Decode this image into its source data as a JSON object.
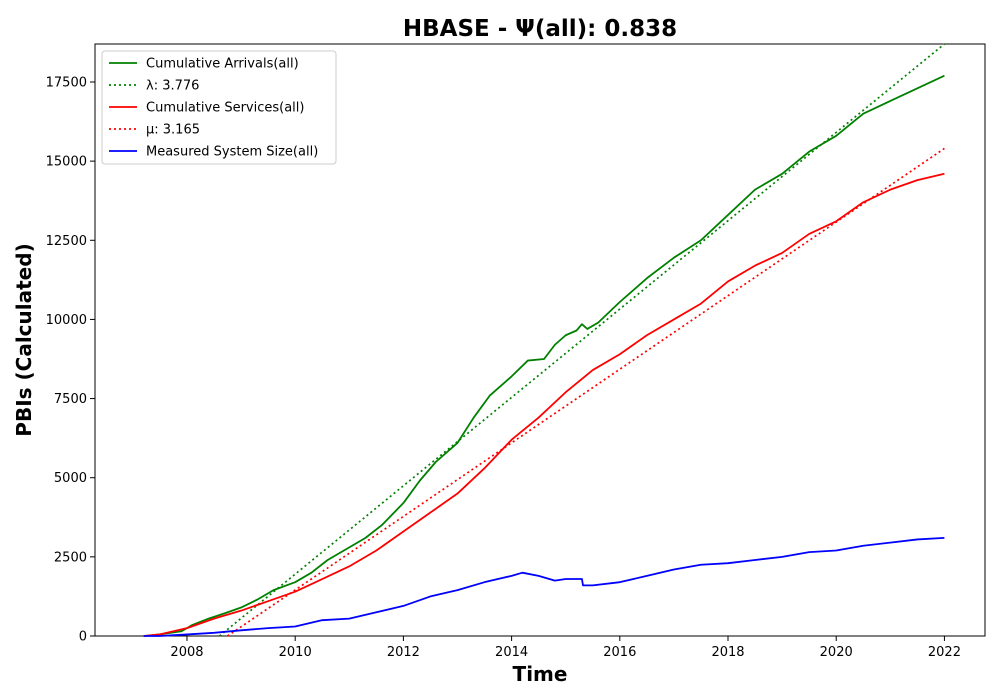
{
  "chart_data": {
    "type": "line",
    "title": "HBASE -  Ψ(all): 0.838",
    "xlabel": "Time",
    "ylabel": "PBIs (Calculated)",
    "xlim": [
      2006.3,
      2022.75
    ],
    "ylim": [
      0,
      18700
    ],
    "xticks": [
      2008,
      2010,
      2012,
      2014,
      2016,
      2018,
      2020,
      2022
    ],
    "yticks": [
      0,
      2500,
      5000,
      7500,
      10000,
      12500,
      15000,
      17500
    ],
    "grid": false,
    "legend_position": "upper-left",
    "series": [
      {
        "name": "Cumulative Arrivals(all)",
        "color": "#008000",
        "style": "solid",
        "x": [
          2007.2,
          2007.5,
          2007.9,
          2008.1,
          2008.4,
          2008.7,
          2009.0,
          2009.3,
          2009.6,
          2010.0,
          2010.3,
          2010.6,
          2011.0,
          2011.3,
          2011.6,
          2012.0,
          2012.3,
          2012.6,
          2013.0,
          2013.3,
          2013.6,
          2014.0,
          2014.3,
          2014.6,
          2014.8,
          2015.0,
          2015.2,
          2015.3,
          2015.4,
          2015.6,
          2016.0,
          2016.5,
          2017.0,
          2017.5,
          2018.0,
          2018.5,
          2019.0,
          2019.5,
          2020.0,
          2020.5,
          2021.0,
          2021.5,
          2022.0
        ],
        "y": [
          0,
          50,
          150,
          350,
          550,
          720,
          900,
          1150,
          1450,
          1700,
          2000,
          2400,
          2800,
          3100,
          3500,
          4200,
          4900,
          5500,
          6100,
          6900,
          7600,
          8200,
          8700,
          8750,
          9200,
          9500,
          9650,
          9850,
          9700,
          9900,
          10550,
          11300,
          11950,
          12500,
          13300,
          14100,
          14600,
          15300,
          15800,
          16500,
          16900,
          17300,
          17700
        ]
      },
      {
        "name": "λ: 3.776",
        "color": "#008000",
        "style": "dotted",
        "x": [
          2008.6,
          2022.0
        ],
        "y": [
          0,
          18700
        ]
      },
      {
        "name": "Cumulative Services(all)",
        "color": "#ff0000",
        "style": "solid",
        "x": [
          2007.2,
          2007.5,
          2008.0,
          2008.5,
          2009.0,
          2009.5,
          2010.0,
          2010.5,
          2011.0,
          2011.5,
          2012.0,
          2012.5,
          2013.0,
          2013.5,
          2014.0,
          2014.5,
          2015.0,
          2015.5,
          2016.0,
          2016.5,
          2017.0,
          2017.5,
          2018.0,
          2018.5,
          2019.0,
          2019.5,
          2020.0,
          2020.5,
          2021.0,
          2021.5,
          2022.0
        ],
        "y": [
          0,
          50,
          250,
          550,
          800,
          1100,
          1400,
          1800,
          2200,
          2700,
          3300,
          3900,
          4500,
          5300,
          6200,
          6900,
          7700,
          8400,
          8900,
          9500,
          10000,
          10500,
          11200,
          11700,
          12100,
          12700,
          13100,
          13700,
          14100,
          14400,
          14600
        ]
      },
      {
        "name": "μ: 3.165",
        "color": "#ff0000",
        "style": "dotted",
        "x": [
          2008.75,
          2022.0
        ],
        "y": [
          0,
          15400
        ]
      },
      {
        "name": "Measured System Size(all)",
        "color": "#0000ff",
        "style": "solid",
        "x": [
          2007.2,
          2007.5,
          2008.0,
          2008.5,
          2009.0,
          2009.5,
          2010.0,
          2010.5,
          2011.0,
          2011.5,
          2012.0,
          2012.5,
          2013.0,
          2013.5,
          2014.0,
          2014.2,
          2014.5,
          2014.8,
          2015.0,
          2015.3,
          2015.32,
          2015.5,
          2016.0,
          2016.5,
          2017.0,
          2017.5,
          2018.0,
          2018.5,
          2019.0,
          2019.5,
          2020.0,
          2020.5,
          2021.0,
          2021.5,
          2022.0
        ],
        "y": [
          0,
          0,
          50,
          100,
          180,
          250,
          300,
          500,
          550,
          750,
          950,
          1250,
          1450,
          1700,
          1900,
          2000,
          1900,
          1750,
          1800,
          1800,
          1600,
          1600,
          1700,
          1900,
          2100,
          2250,
          2300,
          2400,
          2500,
          2650,
          2700,
          2850,
          2950,
          3050,
          3100
        ]
      }
    ]
  }
}
